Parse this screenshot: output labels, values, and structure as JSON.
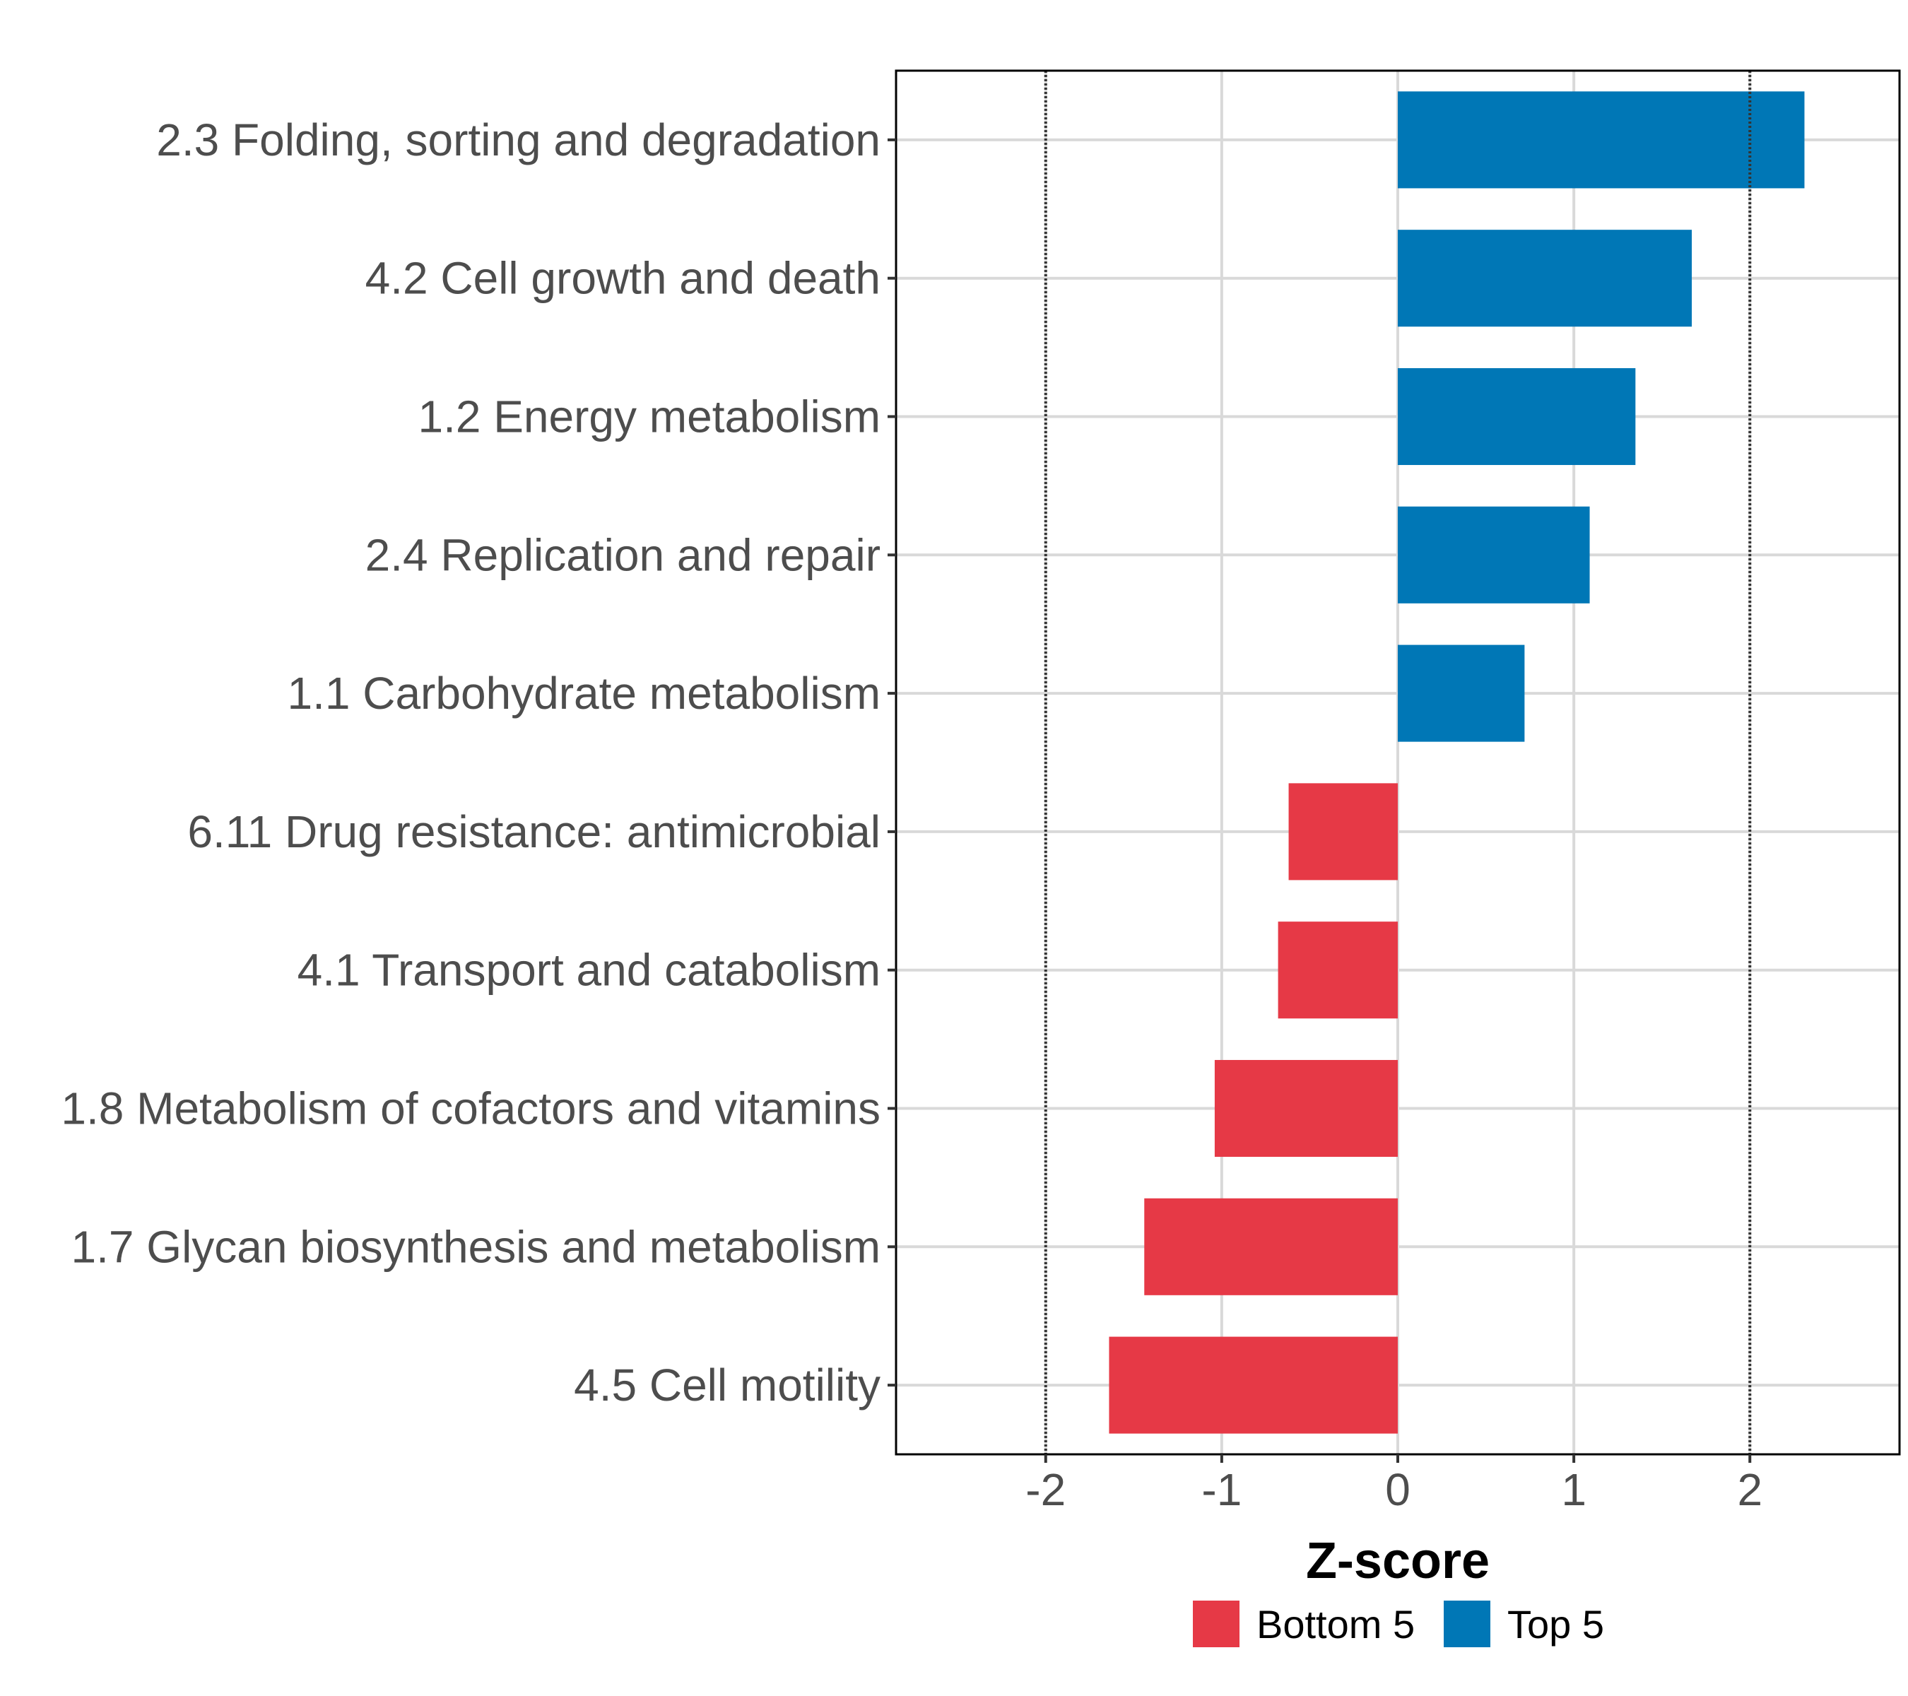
{
  "chart_data": {
    "type": "bar",
    "orientation": "horizontal",
    "title": "",
    "xlabel": "Z-score",
    "ylabel": "",
    "xlim": [
      -2.85,
      2.85
    ],
    "xticks": [
      -2,
      -1,
      0,
      1,
      2
    ],
    "reference_lines": [
      -2,
      2
    ],
    "grid": true,
    "legend_position": "bottom",
    "categories": [
      "2.3 Folding, sorting and degradation",
      "4.2 Cell growth and death",
      "1.2 Energy metabolism",
      "2.4 Replication and repair",
      "1.1 Carbohydrate metabolism",
      "6.11 Drug resistance: antimicrobial",
      "4.1 Transport and catabolism",
      "1.8 Metabolism of cofactors and vitamins",
      "1.7 Glycan biosynthesis and metabolism",
      "4.5 Cell motility"
    ],
    "values": [
      2.31,
      1.67,
      1.35,
      1.09,
      0.72,
      -0.62,
      -0.68,
      -1.04,
      -1.44,
      -1.64
    ],
    "groups": [
      "Top 5",
      "Top 5",
      "Top 5",
      "Top 5",
      "Top 5",
      "Bottom 5",
      "Bottom 5",
      "Bottom 5",
      "Bottom 5",
      "Bottom 5"
    ],
    "legend": [
      {
        "name": "Bottom 5",
        "color": "#e63946"
      },
      {
        "name": "Top 5",
        "color": "#0077b6"
      }
    ]
  }
}
